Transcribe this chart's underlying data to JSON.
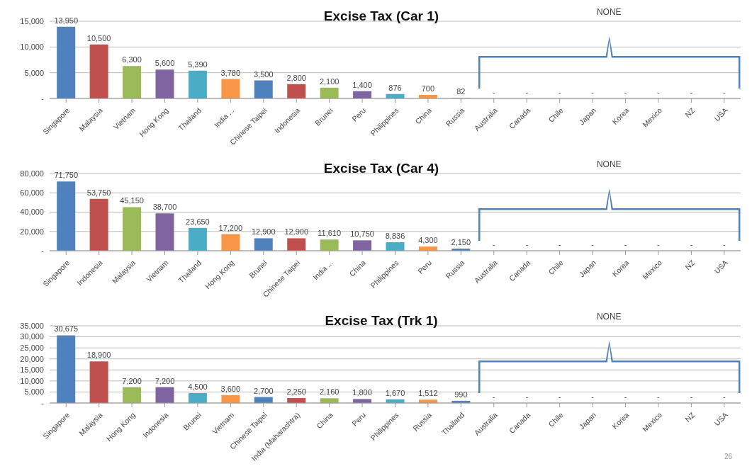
{
  "chart_data": [
    {
      "type": "bar",
      "title": "Excise Tax (Car 1)",
      "categories": [
        "Singapore",
        "Malaysia",
        "Vietnam",
        "Hong Kong",
        "Thailand",
        "India ...",
        "Chinese Taipei",
        "Indonesia",
        "Brunei",
        "Peru",
        "Philippines",
        "China",
        "Russia",
        "Australia",
        "Canada",
        "Chile",
        "Japan",
        "Korea",
        "Mexico",
        "NZ",
        "USA"
      ],
      "values": [
        13950,
        10500,
        6300,
        5600,
        5390,
        3780,
        3500,
        2800,
        2100,
        1400,
        876,
        700,
        82,
        0,
        0,
        0,
        0,
        0,
        0,
        0,
        0
      ],
      "colors": [
        "#4f81bd",
        "#c0504d",
        "#9bbb59",
        "#8064a2",
        "#4bacc6",
        "#f79646",
        "#4f81bd",
        "#c0504d",
        "#9bbb59",
        "#8064a2",
        "#4bacc6",
        "#f79646",
        "#4f81bd",
        "#c0504d",
        "#9bbb59",
        "#8064a2",
        "#4bacc6",
        "#f79646",
        "#4f81bd",
        "#c0504d",
        "#9bbb59"
      ],
      "value_labels": [
        "13,950",
        "10,500",
        "6,300",
        "5,600",
        "5,390",
        "3,780",
        "3,500",
        "2,800",
        "2,100",
        "1,400",
        "876",
        "700",
        "82",
        "-",
        "-",
        "-",
        "-",
        "-",
        "-",
        "-",
        "-"
      ],
      "ylim": [
        0,
        15000
      ],
      "yticks": [
        {
          "value": 0,
          "label": "-"
        },
        {
          "value": 5000,
          "label": "5,000"
        },
        {
          "value": 10000,
          "label": "10,000"
        },
        {
          "value": 15000,
          "label": "15,000"
        }
      ],
      "grid": "y",
      "annotations": [
        "NONE"
      ]
    },
    {
      "type": "bar",
      "title": "Excise Tax (Car 4)",
      "categories": [
        "Singapore",
        "Indonesia",
        "Malaysia",
        "Vietnam",
        "Thailand",
        "Hong Kong",
        "Brunei",
        "Chinese Taipei",
        "India ...",
        "China",
        "Philippines",
        "Peru",
        "Russia",
        "Australia",
        "Canada",
        "Chile",
        "Japan",
        "Korea",
        "Mexico",
        "NZ",
        "USA"
      ],
      "values": [
        71750,
        53750,
        45150,
        38700,
        23650,
        17200,
        12900,
        12900,
        11610,
        10750,
        8836,
        4300,
        2150,
        0,
        0,
        0,
        0,
        0,
        0,
        0,
        0
      ],
      "colors": [
        "#4f81bd",
        "#c0504d",
        "#9bbb59",
        "#8064a2",
        "#4bacc6",
        "#f79646",
        "#4f81bd",
        "#c0504d",
        "#9bbb59",
        "#8064a2",
        "#4bacc6",
        "#f79646",
        "#4f81bd",
        "#c0504d",
        "#9bbb59",
        "#8064a2",
        "#4bacc6",
        "#f79646",
        "#4f81bd",
        "#c0504d",
        "#9bbb59"
      ],
      "value_labels": [
        "71,750",
        "53,750",
        "45,150",
        "38,700",
        "23,650",
        "17,200",
        "12,900",
        "12,900",
        "11,610",
        "10,750",
        "8,836",
        "4,300",
        "2,150",
        "-",
        "-",
        "-",
        "-",
        "-",
        "-",
        "-",
        "-"
      ],
      "ylim": [
        0,
        80000
      ],
      "yticks": [
        {
          "value": 0,
          "label": "-"
        },
        {
          "value": 20000,
          "label": "20,000"
        },
        {
          "value": 40000,
          "label": "40,000"
        },
        {
          "value": 60000,
          "label": "60,000"
        },
        {
          "value": 80000,
          "label": "80,000"
        }
      ],
      "grid": "y",
      "annotations": [
        "NONE"
      ]
    },
    {
      "type": "bar",
      "title": "Excise Tax (Trk 1)",
      "categories": [
        "Singapore",
        "Malaysia",
        "Hong Kong",
        "Indonesia",
        "Brunei",
        "Vietnam",
        "Chinese Taipei",
        "India (Maharashtra)",
        "China",
        "Peru",
        "Philippines",
        "Russia",
        "Thailand",
        "Australia",
        "Canada",
        "Chile",
        "Japan",
        "Korea",
        "Mexico",
        "NZ",
        "USA"
      ],
      "values": [
        30675,
        18900,
        7200,
        7200,
        4500,
        3600,
        2700,
        2250,
        2160,
        1800,
        1670,
        1512,
        990,
        0,
        0,
        0,
        0,
        0,
        0,
        0,
        0
      ],
      "colors": [
        "#4f81bd",
        "#c0504d",
        "#9bbb59",
        "#8064a2",
        "#4bacc6",
        "#f79646",
        "#4f81bd",
        "#c0504d",
        "#9bbb59",
        "#8064a2",
        "#4bacc6",
        "#f79646",
        "#4f81bd",
        "#c0504d",
        "#9bbb59",
        "#8064a2",
        "#4bacc6",
        "#f79646",
        "#4f81bd",
        "#c0504d",
        "#9bbb59"
      ],
      "value_labels": [
        "30,675",
        "18,900",
        "7,200",
        "7,200",
        "4,500",
        "3,600",
        "2,700",
        "2,250",
        "2,160",
        "1,800",
        "1,670",
        "1,512",
        "990",
        "-",
        "-",
        "-",
        "-",
        "-",
        "-",
        "-",
        "-"
      ],
      "ylim": [
        0,
        35000
      ],
      "yticks": [
        {
          "value": 0,
          "label": "-"
        },
        {
          "value": 5000,
          "label": "5,000"
        },
        {
          "value": 10000,
          "label": "10,000"
        },
        {
          "value": 15000,
          "label": "15,000"
        },
        {
          "value": 20000,
          "label": "20,000"
        },
        {
          "value": 25000,
          "label": "25,000"
        },
        {
          "value": 30000,
          "label": "30,000"
        },
        {
          "value": 35000,
          "label": "35,000"
        }
      ],
      "grid": "y",
      "annotations": [
        "NONE",
        "26"
      ]
    }
  ]
}
